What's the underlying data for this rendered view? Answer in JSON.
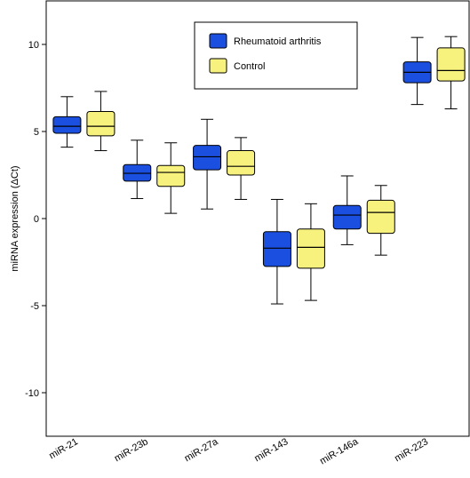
{
  "chart_data": {
    "type": "boxplot",
    "title": "",
    "xlabel": "",
    "ylabel": "miRNA expression (ΔCt)",
    "ylim": [
      -12.5,
      12.5
    ],
    "yticks": [
      10,
      5,
      0,
      -5,
      -10
    ],
    "ytick_labels": [
      "10",
      "5",
      "0",
      "-5",
      "-10"
    ],
    "grid": false,
    "legend_position": "top-center",
    "categories": [
      "miR-21",
      "miR-23b",
      "miR-27a",
      "miR-143",
      "miR-146a",
      "miR-223"
    ],
    "series": [
      {
        "name": "Rheumatoid arthritis",
        "color": "#1a4fe0",
        "boxes": [
          {
            "min": 4.1,
            "q1": 4.9,
            "median": 5.3,
            "q3": 5.85,
            "max": 7.0
          },
          {
            "min": 1.15,
            "q1": 2.15,
            "median": 2.6,
            "q3": 3.1,
            "max": 4.5
          },
          {
            "min": 0.55,
            "q1": 2.8,
            "median": 3.55,
            "q3": 4.2,
            "max": 5.7
          },
          {
            "min": -4.9,
            "q1": -2.75,
            "median": -1.7,
            "q3": -0.75,
            "max": 1.1
          },
          {
            "min": -1.5,
            "q1": -0.6,
            "median": 0.2,
            "q3": 0.75,
            "max": 2.45
          },
          {
            "min": 6.55,
            "q1": 7.8,
            "median": 8.4,
            "q3": 9.0,
            "max": 10.4
          }
        ]
      },
      {
        "name": "Control",
        "color": "#f7f27e",
        "boxes": [
          {
            "min": 3.9,
            "q1": 4.75,
            "median": 5.3,
            "q3": 6.15,
            "max": 7.3
          },
          {
            "min": 0.3,
            "q1": 1.85,
            "median": 2.65,
            "q3": 3.05,
            "max": 4.35
          },
          {
            "min": 1.1,
            "q1": 2.5,
            "median": 3.0,
            "q3": 3.9,
            "max": 4.65
          },
          {
            "min": -4.7,
            "q1": -2.85,
            "median": -1.65,
            "q3": -0.6,
            "max": 0.85
          },
          {
            "min": -2.1,
            "q1": -0.85,
            "median": 0.35,
            "q3": 1.05,
            "max": 1.9
          },
          {
            "min": 6.3,
            "q1": 7.9,
            "median": 8.5,
            "q3": 9.8,
            "max": 10.45
          }
        ]
      }
    ]
  }
}
